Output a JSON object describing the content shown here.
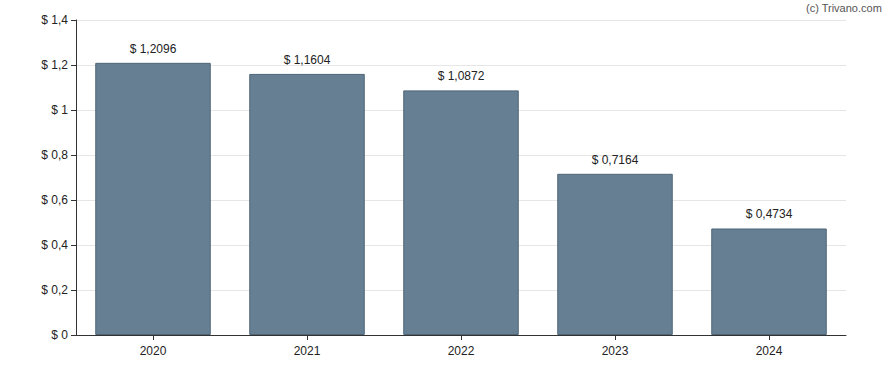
{
  "chart_data": {
    "type": "bar",
    "categories": [
      "2020",
      "2021",
      "2022",
      "2023",
      "2024"
    ],
    "values": [
      1.2096,
      1.1604,
      1.0872,
      0.7164,
      0.4734
    ],
    "value_labels": [
      "$ 1,2096",
      "$ 1,1604",
      "$ 1,0872",
      "$ 0,7164",
      "$ 0,4734"
    ],
    "data_labels": true,
    "color": "#667f93",
    "ylim": [
      0,
      1.4
    ],
    "yticks": [
      {
        "value": 0,
        "label": "$ 0"
      },
      {
        "value": 0.2,
        "label": "$ 0,2"
      },
      {
        "value": 0.4,
        "label": "$ 0,4"
      },
      {
        "value": 0.6,
        "label": "$ 0,6"
      },
      {
        "value": 0.8,
        "label": "$ 0,8"
      },
      {
        "value": 1,
        "label": "$ 1"
      },
      {
        "value": 1.2,
        "label": "$ 1,2"
      },
      {
        "value": 1.4,
        "label": "$ 1,4"
      }
    ],
    "grid": true,
    "annotations": [
      "(c) Trivano.com"
    ]
  }
}
